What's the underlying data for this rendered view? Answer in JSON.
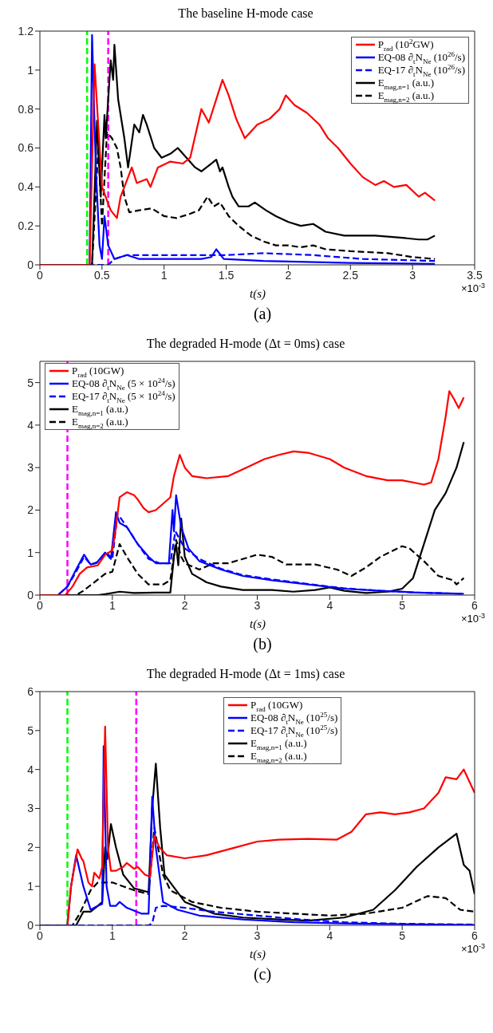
{
  "chart_data": [
    {
      "type": "line",
      "title": "The baseline H-mode case",
      "xlabel": "t(s)",
      "xlim": [
        0,
        3.5
      ],
      "xticks": [
        0,
        0.5,
        1,
        1.5,
        2,
        2.5,
        3,
        3.5
      ],
      "ylim": [
        0,
        1.2
      ],
      "yticks": [
        0,
        0.2,
        0.4,
        0.6,
        0.8,
        1,
        1.2
      ],
      "grid": false,
      "legend": "top right",
      "annotations": [
        "×10$^{-3}$",
        "(a)"
      ],
      "ref_lines": [
        {
          "axis": "x",
          "value": 0.38,
          "color": "#00ff00",
          "line_style": "dashed"
        },
        {
          "axis": "x",
          "value": 0.55,
          "color": "#ff00ff",
          "line_style": "dashed"
        }
      ],
      "series": [
        {
          "name": "P$_{rad}$ (10$^{2}$GW)",
          "color": "#ff0000",
          "line_style": "solid",
          "x": [
            0,
            0.4,
            0.44,
            0.5,
            0.57,
            0.62,
            0.65,
            0.74,
            0.78,
            0.86,
            0.89,
            0.95,
            1.05,
            1.15,
            1.21,
            1.3,
            1.36,
            1.42,
            1.47,
            1.52,
            1.58,
            1.65,
            1.75,
            1.85,
            1.93,
            1.98,
            2.05,
            2.15,
            2.25,
            2.32,
            2.4,
            2.5,
            2.6,
            2.7,
            2.77,
            2.85,
            2.95,
            3.05,
            3.1,
            3.18
          ],
          "values": [
            0,
            0,
            1.03,
            0.4,
            0.28,
            0.24,
            0.35,
            0.5,
            0.42,
            0.44,
            0.4,
            0.5,
            0.53,
            0.52,
            0.55,
            0.8,
            0.73,
            0.85,
            0.95,
            0.87,
            0.75,
            0.65,
            0.72,
            0.75,
            0.8,
            0.87,
            0.82,
            0.78,
            0.72,
            0.65,
            0.6,
            0.52,
            0.45,
            0.41,
            0.43,
            0.4,
            0.41,
            0.35,
            0.37,
            0.33
          ]
        },
        {
          "name": "EQ-08 ∂$_{t}$N$_{Ne}$ (10$^{26}$/s)",
          "color": "#0000ff",
          "line_style": "solid",
          "x": [
            0,
            0.4,
            0.42,
            0.45,
            0.48,
            0.5,
            0.52,
            0.55,
            0.6,
            0.7,
            0.8,
            1,
            1.3,
            1.38,
            1.42,
            1.48,
            1.8,
            2.5,
            3.18
          ],
          "values": [
            0,
            0,
            1.18,
            0.5,
            0.1,
            0.03,
            0.25,
            0.1,
            0.03,
            0.05,
            0.03,
            0.03,
            0.03,
            0.04,
            0.08,
            0.03,
            0.02,
            0.01,
            0.005
          ]
        },
        {
          "name": "EQ-17 ∂$_{t}$N$_{Ne}$ (10$^{26}$/s)",
          "color": "#0000ff",
          "line_style": "dashed",
          "x": [
            0,
            0.55,
            0.6,
            0.7,
            1,
            1.5,
            1.8,
            2.2,
            2.6,
            3.18
          ],
          "values": [
            0,
            0,
            0.03,
            0.05,
            0.05,
            0.05,
            0.06,
            0.05,
            0.03,
            0.02
          ]
        },
        {
          "name": "E$_{mag,n=1}$ (a.u.)",
          "color": "#000000",
          "line_style": "solid",
          "x": [
            0,
            0.42,
            0.46,
            0.49,
            0.52,
            0.53,
            0.57,
            0.59,
            0.6,
            0.63,
            0.68,
            0.71,
            0.76,
            0.8,
            0.83,
            0.86,
            0.92,
            0.98,
            1.05,
            1.11,
            1.18,
            1.25,
            1.3,
            1.38,
            1.42,
            1.45,
            1.47,
            1.52,
            1.55,
            1.6,
            1.68,
            1.73,
            1.82,
            1.9,
            2,
            2.1,
            2.2,
            2.3,
            2.45,
            2.7,
            2.9,
            3.05,
            3.12,
            3.18
          ],
          "values": [
            0,
            0,
            0.74,
            0.35,
            0.77,
            0.65,
            1.05,
            0.95,
            1.13,
            0.85,
            0.65,
            0.5,
            0.72,
            0.68,
            0.77,
            0.72,
            0.6,
            0.55,
            0.57,
            0.6,
            0.55,
            0.5,
            0.48,
            0.52,
            0.54,
            0.48,
            0.5,
            0.4,
            0.35,
            0.3,
            0.3,
            0.32,
            0.28,
            0.25,
            0.22,
            0.2,
            0.21,
            0.17,
            0.15,
            0.15,
            0.14,
            0.13,
            0.13,
            0.15
          ]
        },
        {
          "name": "E$_{mag,n=2}$ (a.u.)",
          "color": "#000000",
          "line_style": "dashed",
          "x": [
            0,
            0.42,
            0.47,
            0.5,
            0.54,
            0.58,
            0.62,
            0.65,
            0.68,
            0.72,
            0.8,
            0.9,
            1,
            1.1,
            1.2,
            1.28,
            1.35,
            1.4,
            1.45,
            1.52,
            1.6,
            1.7,
            1.8,
            1.9,
            2,
            2.1,
            2.2,
            2.3,
            2.5,
            2.8,
            3,
            3.18
          ],
          "values": [
            0,
            0,
            0.6,
            0.2,
            0.68,
            0.65,
            0.6,
            0.5,
            0.35,
            0.27,
            0.28,
            0.29,
            0.25,
            0.24,
            0.26,
            0.28,
            0.35,
            0.3,
            0.32,
            0.25,
            0.2,
            0.15,
            0.12,
            0.1,
            0.1,
            0.09,
            0.1,
            0.08,
            0.07,
            0.06,
            0.04,
            0.03
          ]
        }
      ]
    },
    {
      "type": "line",
      "title": "The degraded H-mode (Δt = 0ms) case",
      "xlabel": "t(s)",
      "xlim": [
        0,
        6
      ],
      "xticks": [
        0,
        1,
        2,
        3,
        4,
        5,
        6
      ],
      "ylim": [
        0,
        5.5
      ],
      "yticks": [
        0,
        1,
        2,
        3,
        4,
        5
      ],
      "grid": false,
      "legend": "top left",
      "annotations": [
        "×10$^{-3}$",
        "(b)"
      ],
      "ref_lines": [
        {
          "axis": "x",
          "value": 0.38,
          "color": "#ff00ff",
          "line_style": "dashed"
        }
      ],
      "series": [
        {
          "name": "P$_{rad}$ (10GW)",
          "color": "#ff0000",
          "line_style": "solid",
          "x": [
            0,
            0.35,
            0.45,
            0.55,
            0.65,
            0.8,
            0.9,
            1,
            1.05,
            1.1,
            1.2,
            1.3,
            1.35,
            1.43,
            1.5,
            1.6,
            1.7,
            1.8,
            1.85,
            1.93,
            2,
            2.1,
            2.3,
            2.6,
            2.85,
            3.1,
            3.3,
            3.5,
            3.7,
            4,
            4.2,
            4.5,
            4.8,
            5,
            5.3,
            5.4,
            5.5,
            5.6,
            5.65,
            5.72,
            5.78,
            5.85
          ],
          "values": [
            0,
            0,
            0.2,
            0.5,
            0.65,
            0.7,
            0.95,
            1.05,
            1.6,
            2.3,
            2.42,
            2.35,
            2.25,
            2.05,
            1.95,
            2,
            2.15,
            2.3,
            2.8,
            3.3,
            3,
            2.8,
            2.75,
            2.8,
            3,
            3.2,
            3.3,
            3.38,
            3.35,
            3.2,
            3,
            2.8,
            2.7,
            2.7,
            2.6,
            2.65,
            3.2,
            4.2,
            4.8,
            4.6,
            4.4,
            4.65
          ]
        },
        {
          "name": "EQ-08 ∂$_{t}$N$_{Ne}$ (5 × 10$^{24}$/s)",
          "color": "#0000ff",
          "line_style": "solid",
          "x": [
            0,
            0.25,
            0.38,
            0.5,
            0.61,
            0.7,
            0.78,
            0.9,
            0.98,
            1.05,
            1.1,
            1.2,
            1.35,
            1.5,
            1.6,
            1.7,
            1.78,
            1.83,
            1.85,
            1.88,
            1.95,
            2.05,
            2.2,
            2.5,
            2.8,
            3.2,
            3.7,
            4.2,
            4.7,
            5.2,
            5.85
          ],
          "values": [
            0,
            0,
            0.2,
            0.6,
            0.95,
            0.72,
            0.75,
            1,
            0.85,
            1.95,
            1.7,
            1.6,
            1.2,
            0.9,
            0.75,
            0.75,
            0.75,
            2,
            1.5,
            2.35,
            1.6,
            1.1,
            0.8,
            0.6,
            0.45,
            0.35,
            0.25,
            0.15,
            0.1,
            0.06,
            0.03
          ]
        },
        {
          "name": "EQ-17 ∂$_{t}$N$_{Ne}$ (5 × 10$^{24}$/s)",
          "color": "#0000ff",
          "line_style": "dashed",
          "x": [
            0,
            0.25,
            0.38,
            0.5,
            0.61,
            0.7,
            0.8,
            0.92,
            1,
            1.07,
            1.12,
            1.22,
            1.37,
            1.5,
            1.65,
            1.8,
            1.87,
            2,
            2.2,
            2.5,
            2.8,
            3.2,
            3.7,
            4.2,
            4.7,
            5.2,
            5.85
          ],
          "values": [
            0,
            0,
            0.2,
            0.55,
            0.9,
            0.72,
            0.78,
            1,
            0.85,
            1.9,
            1.8,
            1.55,
            1.15,
            0.85,
            0.75,
            0.75,
            1.5,
            1.1,
            0.85,
            0.62,
            0.47,
            0.37,
            0.26,
            0.16,
            0.1,
            0.06,
            0.03
          ]
        },
        {
          "name": "E$_{mag,n=1}$ (a.u.)",
          "color": "#000000",
          "line_style": "solid",
          "x": [
            0,
            0.8,
            0.9,
            1.1,
            1.3,
            1.6,
            1.8,
            1.85,
            1.88,
            1.91,
            1.95,
            2,
            2.1,
            2.3,
            2.5,
            2.8,
            3.2,
            3.5,
            3.8,
            4,
            4.2,
            4.5,
            4.8,
            5,
            5.15,
            5.3,
            5.45,
            5.6,
            5.75,
            5.85
          ],
          "values": [
            0,
            0,
            0.02,
            0.08,
            0.05,
            0.06,
            0.06,
            0.9,
            1.2,
            0.7,
            1.8,
            0.9,
            0.5,
            0.3,
            0.2,
            0.12,
            0.12,
            0.08,
            0.12,
            0.18,
            0.1,
            0.05,
            0.08,
            0.15,
            0.4,
            1.2,
            2,
            2.4,
            3,
            3.6
          ]
        },
        {
          "name": "E$_{mag,n=2}$ (a.u.)",
          "color": "#000000",
          "line_style": "dashed",
          "x": [
            0,
            0.5,
            0.6,
            0.75,
            0.9,
            1,
            1.1,
            1.2,
            1.35,
            1.5,
            1.7,
            1.8,
            1.88,
            1.95,
            2,
            2.2,
            2.4,
            2.6,
            2.8,
            3,
            3.2,
            3.4,
            3.8,
            4.1,
            4.3,
            4.5,
            4.7,
            5,
            5.1,
            5.3,
            5.5,
            5.7,
            5.75,
            5.85
          ],
          "values": [
            0,
            0,
            0.1,
            0.3,
            0.5,
            0.55,
            1.2,
            0.9,
            0.5,
            0.25,
            0.25,
            0.35,
            1.3,
            0.9,
            0.75,
            0.6,
            0.75,
            0.75,
            0.85,
            0.95,
            0.9,
            0.72,
            0.72,
            0.6,
            0.45,
            0.65,
            0.9,
            1.15,
            1.1,
            0.8,
            0.45,
            0.35,
            0.25,
            0.4
          ]
        }
      ]
    },
    {
      "type": "line",
      "title": "The degraded H-mode (Δt = 1ms) case",
      "xlabel": "t(s)",
      "xlim": [
        0,
        6
      ],
      "xticks": [
        0,
        1,
        2,
        3,
        4,
        5,
        6
      ],
      "ylim": [
        0,
        6
      ],
      "yticks": [
        0,
        1,
        2,
        3,
        4,
        5,
        6
      ],
      "grid": false,
      "legend": "top",
      "annotations": [
        "×10$^{-3}$",
        "(c)"
      ],
      "ref_lines": [
        {
          "axis": "x",
          "value": 0.38,
          "color": "#00ff00",
          "line_style": "dashed"
        },
        {
          "axis": "x",
          "value": 1.33,
          "color": "#ff00ff",
          "line_style": "dashed"
        }
      ],
      "series": [
        {
          "name": "P$_{rad}$ (10GW)",
          "color": "#ff0000",
          "line_style": "solid",
          "x": [
            0.38,
            0.43,
            0.52,
            0.58,
            0.6,
            0.67,
            0.72,
            0.75,
            0.82,
            0.86,
            0.9,
            0.94,
            0.98,
            1.05,
            1.15,
            1.2,
            1.3,
            1.35,
            1.45,
            1.52,
            1.58,
            1.65,
            1.75,
            2,
            2.3,
            2.7,
            3,
            3.3,
            3.7,
            4.1,
            4.3,
            4.5,
            4.7,
            4.9,
            5.1,
            5.3,
            5.5,
            5.6,
            5.75,
            5.85,
            5.95,
            6
          ],
          "values": [
            0,
            1,
            1.95,
            1.7,
            1.65,
            1.1,
            1,
            1.35,
            1.2,
            1.5,
            5.1,
            2,
            1.4,
            1.4,
            1.5,
            1.6,
            1.45,
            1.5,
            1.3,
            1.25,
            2.3,
            2,
            1.8,
            1.72,
            1.8,
            2,
            2.15,
            2.2,
            2.22,
            2.2,
            2.4,
            2.85,
            2.9,
            2.85,
            2.9,
            3,
            3.4,
            3.8,
            3.75,
            4,
            3.6,
            3.4
          ]
        },
        {
          "name": "EQ-08 ∂$_{t}$N$_{Ne}$ (10$^{25}$/s)",
          "color": "#0000ff",
          "line_style": "solid",
          "x": [
            0.38,
            0.43,
            0.5,
            0.6,
            0.7,
            0.8,
            0.86,
            0.88,
            0.92,
            0.97,
            1.05,
            1.1,
            1.2,
            1.4,
            1.5,
            1.55,
            1.6,
            1.7,
            1.9,
            2.2,
            2.8,
            3.5,
            4.2,
            5,
            6
          ],
          "values": [
            0,
            1,
            1.8,
            1,
            0.4,
            0.5,
            0.55,
            4.6,
            1,
            0.5,
            0.5,
            0.6,
            0.45,
            0.3,
            0.3,
            3.3,
            2,
            0.6,
            0.4,
            0.25,
            0.15,
            0.08,
            0.05,
            0.03,
            0.01
          ]
        },
        {
          "name": "EQ-17 ∂$_{t}$N$_{Ne}$ (10$^{25}$/s)",
          "color": "#0000ff",
          "line_style": "dashed",
          "x": [
            0,
            1.5,
            1.55,
            1.6,
            1.7,
            2,
            2.4,
            3,
            3.6,
            4.2,
            5,
            6
          ],
          "values": [
            0,
            0,
            0.05,
            0.45,
            0.5,
            0.45,
            0.35,
            0.25,
            0.15,
            0.08,
            0.04,
            0.02
          ]
        },
        {
          "name": "E$_{mag,n=1}$ (a.u.)",
          "color": "#000000",
          "line_style": "solid",
          "x": [
            0,
            0.5,
            0.6,
            0.7,
            0.8,
            0.86,
            0.9,
            0.93,
            0.98,
            1.05,
            1.15,
            1.3,
            1.5,
            1.55,
            1.6,
            1.66,
            1.72,
            1.8,
            2,
            2.4,
            2.8,
            3.3,
            3.7,
            4.2,
            4.6,
            4.9,
            5.2,
            5.5,
            5.75,
            5.85,
            5.93,
            6
          ],
          "values": [
            0,
            0,
            0.35,
            0.35,
            0.5,
            0.6,
            2,
            1.7,
            2.6,
            2,
            1.3,
            0.95,
            0.85,
            3,
            4.15,
            2.5,
            1.3,
            1.1,
            0.6,
            0.3,
            0.2,
            0.15,
            0.12,
            0.2,
            0.4,
            0.9,
            1.5,
            2,
            2.35,
            1.55,
            1.4,
            0.8
          ]
        },
        {
          "name": "E$_{mag,n=2}$ (a.u.)",
          "color": "#000000",
          "line_style": "dashed",
          "x": [
            0,
            0.45,
            0.55,
            0.7,
            0.8,
            1,
            1.15,
            1.3,
            1.5,
            1.58,
            1.7,
            1.8,
            2.1,
            2.5,
            3,
            3.5,
            4,
            4.5,
            5,
            5.35,
            5.6,
            5.8,
            6
          ],
          "values": [
            0,
            0,
            0.3,
            0.9,
            1.1,
            1.1,
            1,
            0.9,
            0.8,
            2.5,
            1.3,
            0.9,
            0.6,
            0.45,
            0.35,
            0.3,
            0.25,
            0.3,
            0.45,
            0.75,
            0.7,
            0.4,
            0.35
          ]
        }
      ]
    }
  ]
}
